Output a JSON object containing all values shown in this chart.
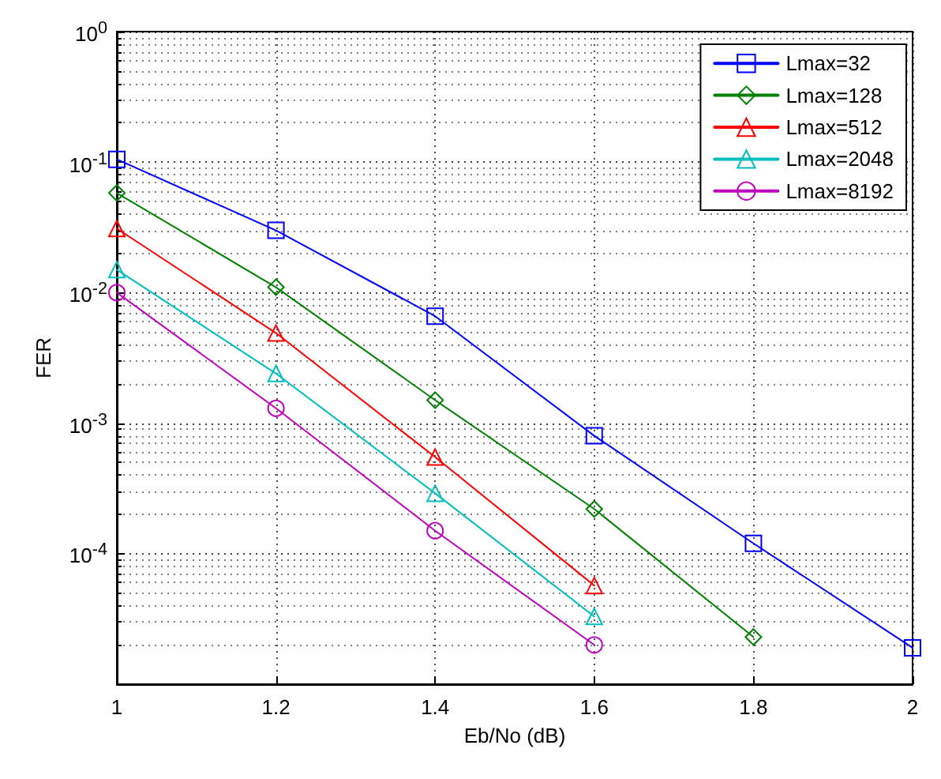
{
  "chart_data": {
    "type": "line",
    "xlabel": "Eb/No (dB)",
    "ylabel": "FER",
    "log": "y",
    "grid": true,
    "legend": "top right",
    "line_style": "solid",
    "x": [
      1,
      1.2,
      1.4,
      1.6,
      1.8,
      2
    ],
    "xlim": [
      1,
      2
    ],
    "xticks": [
      1,
      1.2,
      1.4,
      1.6,
      1.8,
      2
    ],
    "ylim": [
      1e-05,
      1
    ],
    "yticks": [
      {
        "value": 1,
        "label": "10$^{0}$"
      },
      {
        "value": 0.1,
        "label": "10$^{-1}$"
      },
      {
        "value": 0.01,
        "label": "10$^{-2}$"
      },
      {
        "value": 0.001,
        "label": "10$^{-3}$"
      },
      {
        "value": 0.0001,
        "label": "10$^{-4}$"
      }
    ],
    "series": [
      {
        "name": "Lmax=32",
        "color": "#0000ff",
        "marker": "square",
        "values": [
          0.105,
          0.03,
          0.0066,
          0.0008,
          0.00012,
          1.9e-05
        ]
      },
      {
        "name": "Lmax=128",
        "color": "#008000",
        "marker": "diamond",
        "values": [
          0.058,
          0.011,
          0.0015,
          0.00022,
          2.3e-05,
          null
        ]
      },
      {
        "name": "Lmax=512",
        "color": "#ff0000",
        "marker": "triangle",
        "values": [
          0.031,
          0.0049,
          0.00055,
          5.7e-05,
          null,
          null
        ]
      },
      {
        "name": "Lmax=2048",
        "color": "#00bfbf",
        "marker": "triangle",
        "values": [
          0.015,
          0.0024,
          0.00029,
          3.3e-05,
          null,
          null
        ]
      },
      {
        "name": "Lmax=8192",
        "color": "#bf00bf",
        "marker": "circle",
        "values": [
          0.01,
          0.0013,
          0.00015,
          2e-05,
          null,
          null
        ]
      }
    ]
  }
}
